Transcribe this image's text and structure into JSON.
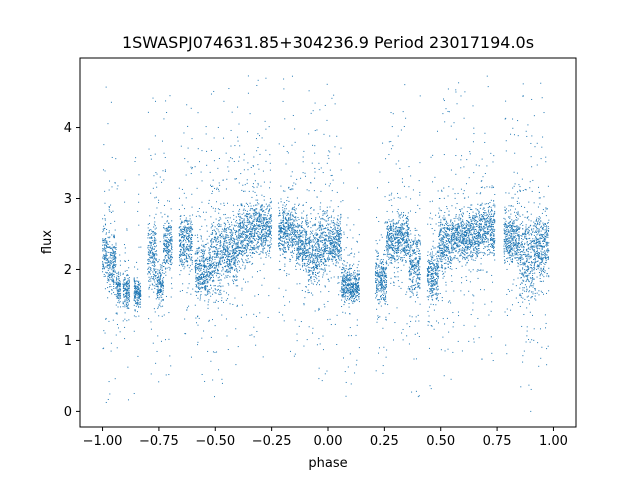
{
  "chart_data": {
    "type": "scatter",
    "title": "1SWASPJ074631.85+304236.9 Period 23017194.0s",
    "xlabel": "phase",
    "ylabel": "flux",
    "xlim": [
      -1.1,
      1.1
    ],
    "ylim": [
      -0.22,
      4.98
    ],
    "xticks": [
      -1.0,
      -0.75,
      -0.5,
      -0.25,
      0.0,
      0.25,
      0.5,
      0.75,
      1.0
    ],
    "xtick_labels": [
      "−1.00",
      "−0.75",
      "−0.50",
      "−0.25",
      "0.00",
      "0.25",
      "0.50",
      "0.75",
      "1.00"
    ],
    "yticks": [
      0,
      1,
      2,
      3,
      4
    ],
    "ytick_labels": [
      "0",
      "1",
      "2",
      "3",
      "4"
    ],
    "grid": false,
    "legend": "none",
    "marker_color": "#1f77b4",
    "series": [
      {
        "clusters": [
          {
            "x": [
              -1.0,
              -0.98
            ],
            "y": [
              1.4,
              3.1
            ]
          },
          {
            "x": [
              -0.98,
              -0.94
            ],
            "y": [
              1.4,
              2.8
            ]
          },
          {
            "x": [
              -0.94,
              -0.92
            ],
            "y": [
              1.4,
              2.1
            ]
          },
          {
            "x": [
              -0.91,
              -0.88
            ],
            "y": [
              1.3,
              2.1
            ]
          },
          {
            "x": [
              -0.86,
              -0.83
            ],
            "y": [
              1.35,
              2.0
            ]
          },
          {
            "x": [
              -0.8,
              -0.76
            ],
            "y": [
              1.45,
              2.95
            ]
          },
          {
            "x": [
              -0.76,
              -0.73
            ],
            "y": [
              1.35,
              2.2
            ]
          },
          {
            "x": [
              -0.73,
              -0.69
            ],
            "y": [
              1.8,
              2.9
            ]
          },
          {
            "x": [
              -0.66,
              -0.6
            ],
            "y": [
              1.8,
              3.0
            ]
          },
          {
            "x": [
              -0.59,
              -0.52
            ],
            "y": [
              1.35,
              2.6
            ]
          },
          {
            "x": [
              -0.52,
              -0.47
            ],
            "y": [
              1.3,
              3.1
            ]
          },
          {
            "x": [
              -0.47,
              -0.4
            ],
            "y": [
              1.6,
              2.9
            ]
          },
          {
            "x": [
              -0.4,
              -0.33
            ],
            "y": [
              1.9,
              3.1
            ]
          },
          {
            "x": [
              -0.33,
              -0.25
            ],
            "y": [
              2.0,
              3.15
            ]
          },
          {
            "x": [
              -0.22,
              -0.14
            ],
            "y": [
              2.0,
              3.1
            ]
          },
          {
            "x": [
              -0.14,
              -0.09
            ],
            "y": [
              1.8,
              2.9
            ]
          },
          {
            "x": [
              -0.09,
              -0.04
            ],
            "y": [
              1.5,
              3.0
            ]
          },
          {
            "x": [
              -0.04,
              0.01
            ],
            "y": [
              1.6,
              3.1
            ]
          },
          {
            "x": [
              0.01,
              0.06
            ],
            "y": [
              1.9,
              2.9
            ]
          },
          {
            "x": [
              0.06,
              0.1
            ],
            "y": [
              1.4,
              2.2
            ]
          },
          {
            "x": [
              0.1,
              0.14
            ],
            "y": [
              1.4,
              2.1
            ]
          },
          {
            "x": [
              0.21,
              0.26
            ],
            "y": [
              1.35,
              2.4
            ]
          },
          {
            "x": [
              0.26,
              0.31
            ],
            "y": [
              1.9,
              2.9
            ]
          },
          {
            "x": [
              0.31,
              0.36
            ],
            "y": [
              1.9,
              3.0
            ]
          },
          {
            "x": [
              0.36,
              0.41
            ],
            "y": [
              1.4,
              2.8
            ]
          },
          {
            "x": [
              0.44,
              0.49
            ],
            "y": [
              1.35,
              2.5
            ]
          },
          {
            "x": [
              0.49,
              0.55
            ],
            "y": [
              1.7,
              3.0
            ]
          },
          {
            "x": [
              0.55,
              0.62
            ],
            "y": [
              1.9,
              3.0
            ]
          },
          {
            "x": [
              0.62,
              0.67
            ],
            "y": [
              2.0,
              3.0
            ]
          },
          {
            "x": [
              0.67,
              0.74
            ],
            "y": [
              2.0,
              3.15
            ]
          },
          {
            "x": [
              0.78,
              0.85
            ],
            "y": [
              1.9,
              3.0
            ]
          },
          {
            "x": [
              0.85,
              0.92
            ],
            "y": [
              1.2,
              3.1
            ]
          },
          {
            "x": [
              0.92,
              0.98
            ],
            "y": [
              1.7,
              3.0
            ]
          }
        ]
      }
    ]
  }
}
